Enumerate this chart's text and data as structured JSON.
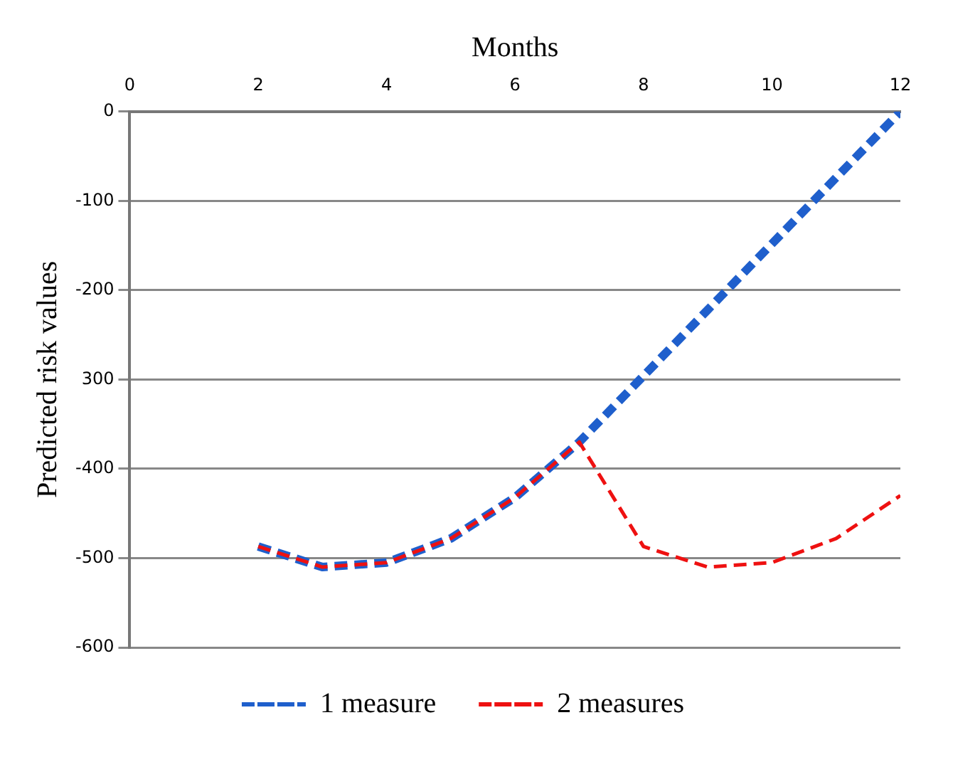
{
  "chart_data": {
    "type": "line",
    "xlabel": "Months",
    "ylabel": "Predicted risk values",
    "x": [
      2,
      3,
      4,
      5,
      6,
      7,
      8,
      9,
      10,
      11,
      12
    ],
    "series": [
      {
        "name": "1 measure",
        "color": "#1f5fcc",
        "line_style": "dashed",
        "values": [
          -487,
          -510,
          -505,
          -478,
          -432,
          -370,
          -296,
          -222,
          -148,
          -74,
          0
        ]
      },
      {
        "name": "2 measures",
        "color": "#ee1111",
        "line_style": "dashed",
        "values": [
          -487,
          -510,
          -505,
          -478,
          -432,
          -370,
          -487,
          -510,
          -505,
          -478,
          -430
        ]
      }
    ],
    "xlim": [
      0,
      12
    ],
    "xticks": [
      0,
      2,
      4,
      6,
      8,
      10,
      12
    ],
    "ylim": [
      -600,
      0
    ],
    "yticks": [
      0,
      -100,
      -200,
      {
        "value": -300,
        "label": "300"
      },
      -400,
      -500,
      -600
    ],
    "grid": "y",
    "legend": "bottom",
    "marker": "none"
  }
}
